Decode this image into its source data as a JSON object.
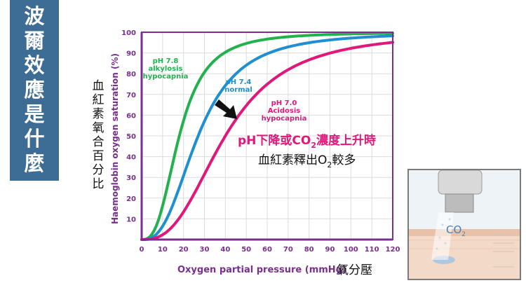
{
  "side_title": [
    "波",
    "爾",
    "效",
    "應",
    "是",
    "什",
    "麼"
  ],
  "chart_data": {
    "type": "line",
    "xlabel": "Oxygen partial pressure (mmHg)",
    "xlabel_cn": "氧分壓",
    "ylabel": "Haemoglobin oxygen saturation (%)",
    "ylabel_cn": [
      "血",
      "紅",
      "素",
      "氧",
      "合",
      "百",
      "分",
      "比"
    ],
    "xlim": [
      0,
      120
    ],
    "ylim": [
      0,
      100
    ],
    "xticks": [
      0,
      10,
      20,
      30,
      40,
      50,
      60,
      70,
      80,
      90,
      100,
      110,
      120
    ],
    "yticks": [
      10,
      20,
      30,
      40,
      50,
      60,
      70,
      80,
      90,
      100
    ],
    "grid": true,
    "series": [
      {
        "label_lines": [
          "pH 7.8",
          "alkylosis",
          "hypocapnia"
        ],
        "color": "#22b14c",
        "p50": 18,
        "n": 2.8
      },
      {
        "label_lines": [
          "pH 7.4",
          "normal"
        ],
        "color": "#1e8fd0",
        "p50": 27,
        "n": 2.7
      },
      {
        "label_lines": [
          "pH 7.0",
          "Acidosis",
          "hypocapnia"
        ],
        "color": "#e0187a",
        "p50": 40,
        "n": 2.7
      }
    ],
    "annotations": {
      "line1_a": "pH下降或CO",
      "line1_sub": "2",
      "line1_b": "濃度上升時",
      "line2_a": "血紅素釋出O",
      "line2_sub": "2",
      "line2_b": "較多"
    }
  },
  "inset": {
    "label": "CO",
    "label_sub": "2"
  }
}
